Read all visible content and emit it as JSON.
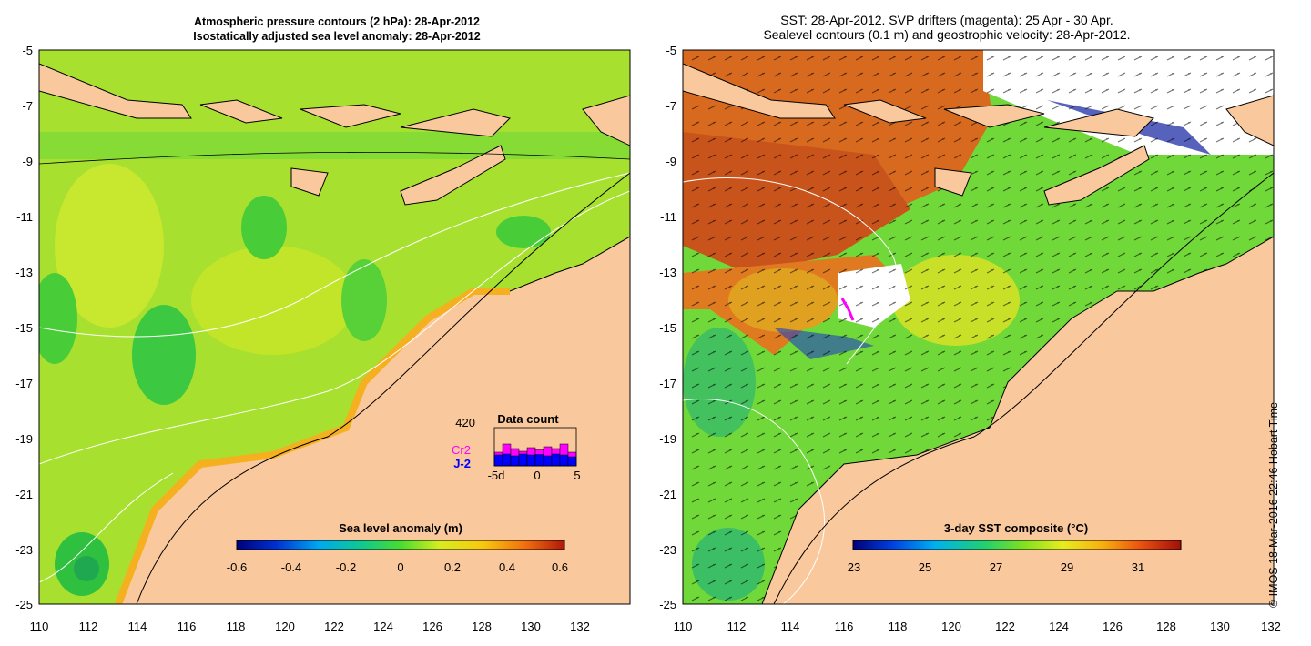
{
  "left_panel": {
    "title_line1": "Atmospheric pressure contours (2 hPa): 28-Apr-2012",
    "title_line2": "Isostatically adjusted sea level anomaly: 28-Apr-2012",
    "colorbar": {
      "label": "Sea level anomaly (m)",
      "ticks": [
        "-0.6",
        "-0.4",
        "-0.2",
        "0",
        "0.2",
        "0.4",
        "0.6"
      ],
      "range": [
        -0.6,
        0.6
      ]
    },
    "data_count": {
      "title": "Data count",
      "max_label": "420",
      "series": [
        {
          "name": "Cr2",
          "color": "#ff00ff",
          "values": [
            150,
            240,
            190,
            160,
            200,
            175,
            210,
            190,
            240,
            150
          ]
        },
        {
          "name": "J-2",
          "color": "#0000ff",
          "values": [
            120,
            130,
            110,
            130,
            120,
            125,
            110,
            130,
            120,
            100
          ]
        }
      ],
      "x_labels": [
        "-5d",
        "0",
        "5"
      ]
    }
  },
  "right_panel": {
    "title_line1": "SST: 28-Apr-2012. SVP drifters (magenta): 25 Apr - 30 Apr.",
    "title_line2": "Sealevel contours (0.1 m) and geostrophic velocity: 28-Apr-2012.",
    "colorbar": {
      "label": "3-day SST composite (°C)",
      "ticks": [
        "23",
        "25",
        "27",
        "29",
        "31"
      ],
      "range": [
        22.2,
        32.8
      ]
    }
  },
  "axes": {
    "lat_ticks": [
      "-5",
      "-7",
      "-9",
      "-11",
      "-13",
      "-15",
      "-17",
      "-19",
      "-21",
      "-23",
      "-25"
    ],
    "lon_ticks": [
      "110",
      "112",
      "114",
      "116",
      "118",
      "120",
      "122",
      "124",
      "126",
      "128",
      "130",
      "132"
    ]
  },
  "credit": "© IMOS 18-Mar-2016 22:46 Hobart Time",
  "colors": {
    "land": "#f9c89c",
    "sea_green": "#6bd83a",
    "sea_yellow": "#d8ec30",
    "sst_orange": "#e0701e"
  }
}
